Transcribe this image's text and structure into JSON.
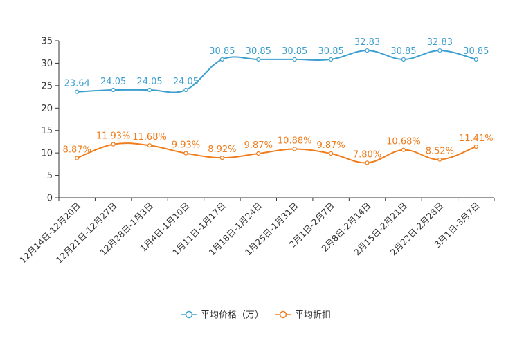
{
  "chart_data": {
    "type": "line",
    "title": "",
    "xlabel": "",
    "ylabel": "",
    "ylim": [
      0,
      35
    ],
    "yticks": [
      0,
      5,
      10,
      15,
      20,
      25,
      30,
      35
    ],
    "grid": false,
    "legend_position": "bottom-center",
    "categories": [
      "12月14日-12月20日",
      "12月21日-12月27日",
      "12月28日-1月3日",
      "1月4日-1月10日",
      "1月11日-1月17日",
      "1月18日-1月24日",
      "1月25日-1月31日",
      "2月1日-2月7日",
      "2月8日-2月14日",
      "2月15日-2月21日",
      "2月22日-2月28日",
      "3月1日-3月7日"
    ],
    "series": [
      {
        "name": "平均价格（万）",
        "color": "#3d9fcf",
        "values": [
          23.64,
          24.05,
          24.05,
          24.05,
          30.85,
          30.85,
          30.85,
          30.85,
          32.83,
          30.85,
          32.83,
          30.85
        ],
        "labels": [
          "23.64",
          "24.05",
          "24.05",
          "24.05",
          "30.85",
          "30.85",
          "30.85",
          "30.85",
          "32.83",
          "30.85",
          "32.83",
          "30.85"
        ]
      },
      {
        "name": "平均折扣",
        "color": "#f07d1c",
        "values": [
          8.87,
          11.93,
          11.68,
          9.93,
          8.92,
          9.87,
          10.88,
          9.87,
          7.8,
          10.68,
          8.52,
          11.41
        ],
        "labels": [
          "8.87%",
          "11.93%",
          "11.68%",
          "9.93%",
          "8.92%",
          "9.87%",
          "10.88%",
          "9.87%",
          "7.80%",
          "10.68%",
          "8.52%",
          "11.41%"
        ]
      }
    ]
  }
}
